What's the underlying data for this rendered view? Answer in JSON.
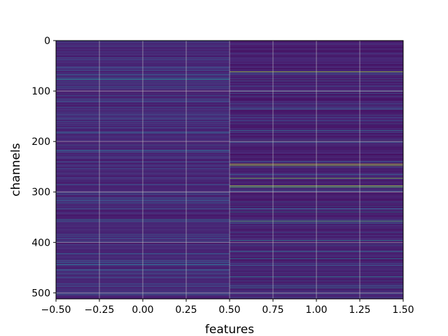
{
  "chart_data": {
    "type": "heatmap",
    "title": "",
    "xlabel": "features",
    "ylabel": "channels",
    "xlim": [
      -0.5,
      1.5
    ],
    "ylim": [
      512,
      0
    ],
    "y_inverted": true,
    "grid": true,
    "colormap": "viridis",
    "n_rows": 512,
    "columns": [
      0,
      1
    ],
    "x_ticks": [
      -0.5,
      -0.25,
      0.0,
      0.25,
      0.5,
      0.75,
      1.0,
      1.25,
      1.5
    ],
    "x_tick_labels": [
      "−0.50",
      "−0.25",
      "0.00",
      "0.25",
      "0.50",
      "0.75",
      "1.00",
      "1.25",
      "1.50"
    ],
    "y_ticks": [
      0,
      100,
      200,
      300,
      400,
      500
    ],
    "y_tick_labels": [
      "0",
      "100",
      "200",
      "300",
      "400",
      "500"
    ],
    "base_level": [
      0.15,
      0.12
    ],
    "highlights": [
      {
        "column": 0,
        "rows": [
          {
            "row": 76,
            "v": 0.45
          },
          {
            "row": 77,
            "v": 0.5
          },
          {
            "row": 120,
            "v": 0.35
          },
          {
            "row": 218,
            "v": 0.38
          },
          {
            "row": 355,
            "v": 0.5
          },
          {
            "row": 358,
            "v": 0.42
          },
          {
            "row": 402,
            "v": 0.0
          },
          {
            "row": 455,
            "v": 0.38
          },
          {
            "row": 470,
            "v": 0.32
          }
        ]
      },
      {
        "column": 1,
        "rows": [
          {
            "row": 62,
            "v": 0.9
          },
          {
            "row": 100,
            "v": 0.5
          },
          {
            "row": 178,
            "v": 0.48
          },
          {
            "row": 200,
            "v": 0.45
          },
          {
            "row": 245,
            "v": 0.95
          },
          {
            "row": 248,
            "v": 0.88
          },
          {
            "row": 273,
            "v": 0.85
          },
          {
            "row": 288,
            "v": 0.92
          },
          {
            "row": 291,
            "v": 0.8
          },
          {
            "row": 340,
            "v": 0.5
          },
          {
            "row": 358,
            "v": 0.78
          },
          {
            "row": 362,
            "v": 0.45
          },
          {
            "row": 396,
            "v": 0.55
          },
          {
            "row": 418,
            "v": 0.48
          },
          {
            "row": 432,
            "v": 0.5
          },
          {
            "row": 468,
            "v": 0.55
          },
          {
            "row": 490,
            "v": 0.5
          }
        ]
      }
    ]
  }
}
